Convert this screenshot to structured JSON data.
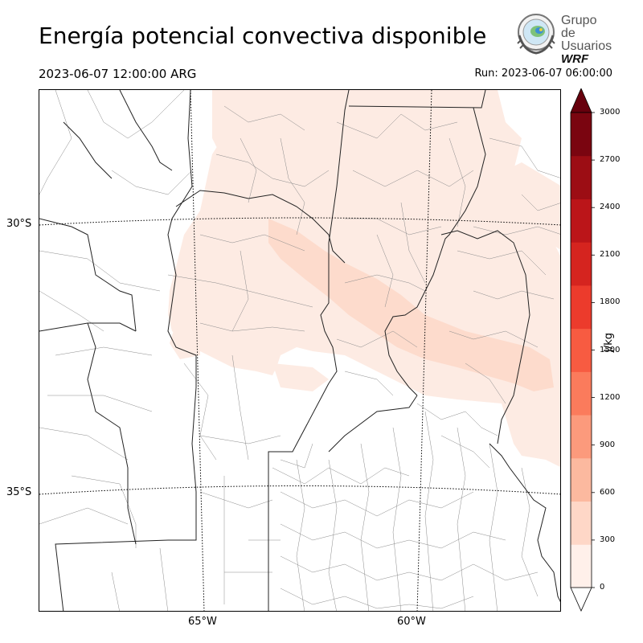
{
  "header": {
    "title": "Energía potencial convectiva disponible",
    "valid_time": "2023-06-07 12:00:00 ARG",
    "run": "Run: 2023-06-07 06:00:00"
  },
  "logo": {
    "line1": "Grupo de",
    "line2": "Usuarios",
    "line3": "WRF"
  },
  "map": {
    "lat_labels": [
      "30°S",
      "35°S"
    ],
    "lon_labels": [
      "65°W",
      "60°W"
    ]
  },
  "colorbar": {
    "unit": "J/kg",
    "ticks": [
      "0",
      "300",
      "600",
      "900",
      "1200",
      "1500",
      "1800",
      "2100",
      "2400",
      "2700",
      "3000"
    ],
    "colors": [
      "#fff0ea",
      "#fed7c7",
      "#fcb99f",
      "#fc9a7c",
      "#fb7b5c",
      "#f75b41",
      "#ec3b2c",
      "#d5241f",
      "#bb1519",
      "#9c0d14",
      "#7a0510"
    ],
    "extend_color": "#67000d"
  },
  "legend_colors": {
    "cape_low": "#fdebe3",
    "cape_mid": "#fddbcc"
  }
}
